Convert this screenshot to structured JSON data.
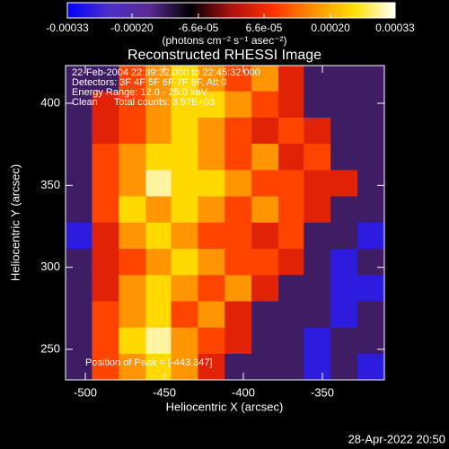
{
  "chart_data": {
    "type": "heatmap",
    "title": "Reconstructed RHESSI Image",
    "xlabel": "Heliocentric X (arcsec)",
    "ylabel": "Heliocentric Y (arcsec)",
    "colorbar_label": "(photons cm⁻² s⁻¹ asec⁻²)",
    "annotations": [
      "22-Feb-2004 22:39:32.000 to 22:45:32.000",
      "Detectors: 3F 4F 5F 6F 7F 8F, Att 0",
      "Energy Range: 12.0 - 25.0 keV",
      "Clean      Total counts: 3.57E+03"
    ],
    "peak_label": "Position of Peak = [-443,347]",
    "timestamp": "28-Apr-2022 20:50",
    "xlim": [
      -512.5,
      -310.8
    ],
    "ylim": [
      231.4,
      423
    ],
    "xticks": [
      -500,
      -450,
      -400,
      -350
    ],
    "yticks": [
      250,
      300,
      350,
      400
    ],
    "zlim": [
      -0.00033,
      0.00033
    ],
    "zticks": [
      -0.00033,
      {
        "value": -0.0002,
        "label": "-0.00020"
      },
      {
        "value": -6.6e-05,
        "label": "-6.6e-05"
      },
      {
        "value": 6.6e-05,
        "label": "6.6e-05"
      },
      {
        "value": 0.0002,
        "label": "0.00020"
      },
      0.00033
    ],
    "colormap": [
      "#0000ff",
      "#4b2fc8",
      "#5a2a90",
      "#000000",
      "#b01010",
      "#ff3000",
      "#ff9000",
      "#ffe000",
      "#ffffff"
    ],
    "x": [
      -504,
      -487,
      -470,
      -453,
      -437,
      -420,
      -403,
      -386,
      -369,
      -353,
      -336,
      -319
    ],
    "y": [
      415,
      399,
      383,
      367,
      351,
      335,
      319,
      303,
      287,
      271,
      255,
      239
    ],
    "z": [
      [
        -0.00014,
        -0.00014,
        0.0001,
        0.00017,
        0.00024,
        0.00017,
        0.0001,
        0.00017,
        5e-05,
        -0.00014,
        -0.00014,
        -0.00014
      ],
      [
        -0.00014,
        5e-05,
        0.0001,
        0.00017,
        0.00024,
        0.00024,
        0.00017,
        0.0001,
        5e-05,
        -0.00014,
        -0.00014,
        -0.00014
      ],
      [
        -0.00014,
        5e-05,
        0.0001,
        0.00017,
        0.00024,
        0.00017,
        0.0001,
        5e-05,
        0.0001,
        5e-05,
        -0.00014,
        -0.00014
      ],
      [
        -0.00014,
        0.0001,
        0.00017,
        0.00024,
        0.00024,
        0.00017,
        0.0001,
        0.00017,
        5e-05,
        0.0001,
        -0.00014,
        -0.00014
      ],
      [
        -0.00014,
        0.0001,
        0.00017,
        0.0003,
        0.00024,
        0.00024,
        0.00017,
        0.0001,
        0.0001,
        5e-05,
        5e-05,
        -0.00014
      ],
      [
        -0.00014,
        0.0001,
        0.00024,
        0.00017,
        0.00024,
        0.00017,
        0.0001,
        0.00017,
        0.0001,
        5e-05,
        -0.00014,
        -0.00014
      ],
      [
        -0.00028,
        5e-05,
        0.00017,
        0.00024,
        0.00017,
        0.0001,
        0.0001,
        5e-05,
        0.0001,
        -0.00014,
        -0.00014,
        -0.00028
      ],
      [
        -0.00014,
        5e-05,
        0.0001,
        0.00017,
        0.00024,
        0.00017,
        0.0001,
        0.0001,
        5e-05,
        -0.00014,
        -0.00028,
        -0.00014
      ],
      [
        -0.00014,
        5e-05,
        0.00017,
        0.00024,
        0.00017,
        0.0001,
        0.00017,
        5e-05,
        -0.00014,
        -0.00014,
        -0.00028,
        -0.00028
      ],
      [
        -0.00014,
        0.0001,
        0.00017,
        0.00024,
        0.0001,
        0.00017,
        5e-05,
        -0.00014,
        -0.00014,
        -0.00014,
        -0.00028,
        -0.00014
      ],
      [
        -0.00014,
        0.0001,
        0.00024,
        0.0003,
        0.00017,
        0.0001,
        5e-05,
        -0.00014,
        -0.00014,
        -0.00028,
        -0.00014,
        -0.00014
      ],
      [
        -0.00014,
        0.0001,
        0.00017,
        0.00024,
        0.00017,
        5e-05,
        -0.00014,
        -0.00014,
        -0.00014,
        -0.00028,
        -0.00014,
        -0.00028
      ]
    ]
  }
}
